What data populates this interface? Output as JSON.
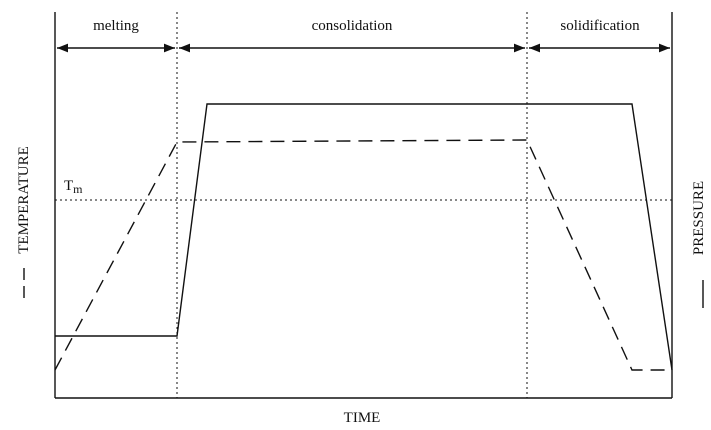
{
  "phases": [
    "melting",
    "consolidation",
    "solidification"
  ],
  "threshold": {
    "base": "T",
    "subscript": "m"
  },
  "axes": {
    "left": "TEMPERATURE",
    "right": "PRESSURE",
    "bottom": "TIME"
  }
}
